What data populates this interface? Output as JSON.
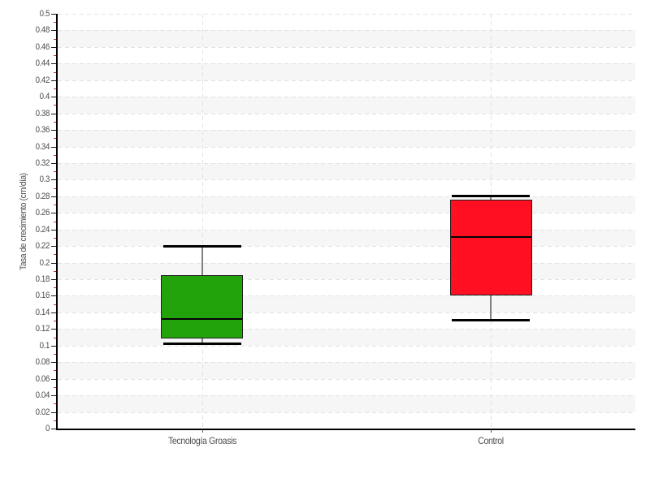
{
  "chart_data": {
    "type": "boxplot",
    "title": "",
    "xlabel": "",
    "ylabel": "Tasa de crecimiento (cm/día)",
    "ylim": [
      0,
      0.5
    ],
    "y_major_step": 0.02,
    "y_minor_step": 0.01,
    "y_tick_labels": [
      "0",
      "0.02",
      "0.04",
      "0.06",
      "0.08",
      "0.1",
      "0.12",
      "0.14",
      "0.16",
      "0.18",
      "0.2",
      "0.22",
      "0.24",
      "0.26",
      "0.28",
      "0.3",
      "0.32",
      "0.34",
      "0.36",
      "0.38",
      "0.4",
      "0.42",
      "0.44",
      "0.46",
      "0.48",
      "0.5"
    ],
    "grid": "horizontal dashed lines every 0.02, alternating background bands, dashed vertical line at each category",
    "legend": "none",
    "categories": [
      "Tecnología Groasis",
      "Control"
    ],
    "series": [
      {
        "name": "Tecnología Groasis",
        "color": "#22a30c",
        "min": 0.102,
        "q1": 0.109,
        "median": 0.132,
        "q3": 0.185,
        "max": 0.22
      },
      {
        "name": "Control",
        "color": "#ff0f21",
        "min": 0.131,
        "q1": 0.16,
        "median": 0.231,
        "q3": 0.276,
        "max": 0.28
      }
    ]
  },
  "colors": {
    "background": "#ffffff",
    "band_alt": "#f6f6f6",
    "grid_line": "#e2e2e2",
    "axis_line": "#000000",
    "tick_label": "#4d4d4d",
    "major_tick": "#1a1a1a",
    "minor_tick": "#d3281e",
    "whisker_cap": "#000000",
    "whisker_stem": "#808080",
    "box_border": "#1f1f1f",
    "median_line": "#050505",
    "category_tick": "#555555"
  }
}
